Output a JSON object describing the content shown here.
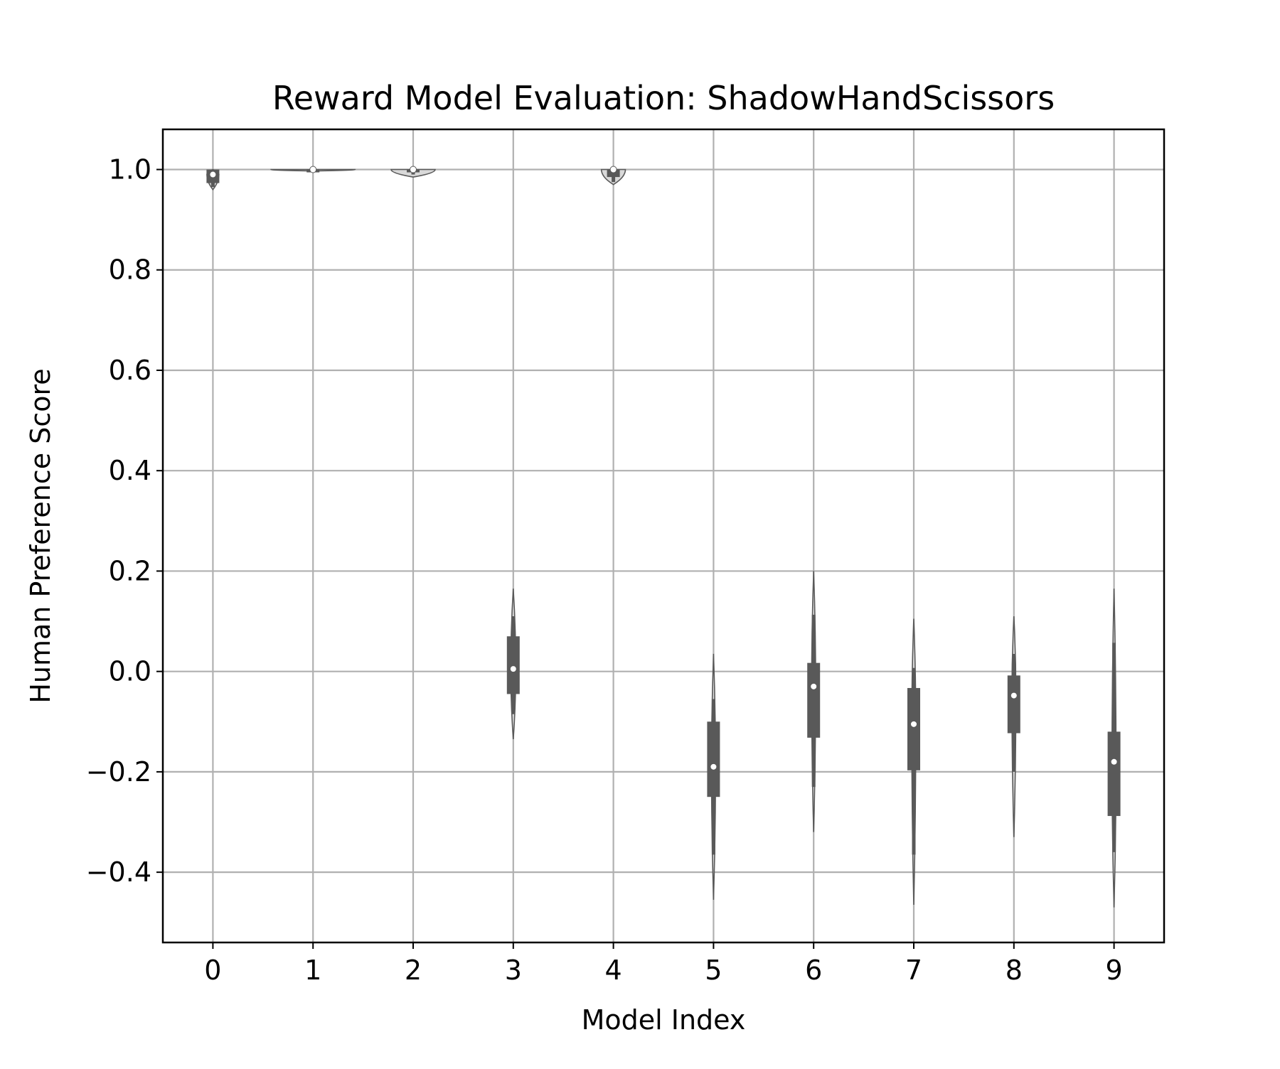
{
  "chart_data": {
    "type": "violin",
    "title": "Reward Model Evaluation: ShadowHandScissors",
    "xlabel": "Model Index",
    "ylabel": "Human Preference Score",
    "categories": [
      "0",
      "1",
      "2",
      "3",
      "4",
      "5",
      "6",
      "7",
      "8",
      "9"
    ],
    "ylim": [
      -0.54,
      1.08
    ],
    "yticks": [
      -0.4,
      -0.2,
      0.0,
      0.2,
      0.4,
      0.6,
      0.8,
      1.0
    ],
    "ytick_labels": [
      "−0.4",
      "−0.2",
      "0.0",
      "0.2",
      "0.4",
      "0.6",
      "0.8",
      "1.0"
    ],
    "grid": true,
    "legend": "none",
    "colors": {
      "violin": "#595959",
      "box": "#595959",
      "median": "#ffffff",
      "grid": "#b0b0b0"
    },
    "series": [
      {
        "category": "0",
        "min": 0.96,
        "whisker_low": 0.965,
        "q1": 0.973,
        "median": 0.99,
        "q3": 1.0,
        "whisker_high": 1.0,
        "max": 1.0,
        "halfwidth": 0.06
      },
      {
        "category": "1",
        "min": 0.997,
        "whisker_low": 0.998,
        "q1": 0.999,
        "median": 1.0,
        "q3": 1.0,
        "whisker_high": 1.0,
        "max": 1.0,
        "halfwidth": 0.42
      },
      {
        "category": "2",
        "min": 0.985,
        "whisker_low": 0.99,
        "q1": 0.996,
        "median": 1.0,
        "q3": 1.0,
        "whisker_high": 1.0,
        "max": 1.0,
        "halfwidth": 0.22
      },
      {
        "category": "3",
        "min": -0.135,
        "whisker_low": -0.085,
        "q1": -0.045,
        "median": 0.005,
        "q3": 0.07,
        "whisker_high": 0.11,
        "max": 0.165,
        "halfwidth": 0.025
      },
      {
        "category": "4",
        "min": 0.97,
        "whisker_low": 0.975,
        "q1": 0.985,
        "median": 1.0,
        "q3": 1.0,
        "whisker_high": 1.0,
        "max": 1.0,
        "halfwidth": 0.12
      },
      {
        "category": "5",
        "min": -0.455,
        "whisker_low": -0.365,
        "q1": -0.25,
        "median": -0.19,
        "q3": -0.1,
        "whisker_high": -0.055,
        "max": 0.035,
        "halfwidth": 0.02
      },
      {
        "category": "6",
        "min": -0.32,
        "whisker_low": -0.23,
        "q1": -0.132,
        "median": -0.03,
        "q3": 0.017,
        "whisker_high": 0.113,
        "max": 0.2,
        "halfwidth": 0.02
      },
      {
        "category": "7",
        "min": -0.465,
        "whisker_low": -0.365,
        "q1": -0.197,
        "median": -0.105,
        "q3": -0.033,
        "whisker_high": 0.007,
        "max": 0.105,
        "halfwidth": 0.02
      },
      {
        "category": "8",
        "min": -0.33,
        "whisker_low": -0.2,
        "q1": -0.123,
        "median": -0.048,
        "q3": -0.008,
        "whisker_high": 0.035,
        "max": 0.11,
        "halfwidth": 0.02
      },
      {
        "category": "9",
        "min": -0.47,
        "whisker_low": -0.36,
        "q1": -0.288,
        "median": -0.18,
        "q3": -0.12,
        "whisker_high": 0.057,
        "max": 0.165,
        "halfwidth": 0.02
      }
    ]
  }
}
